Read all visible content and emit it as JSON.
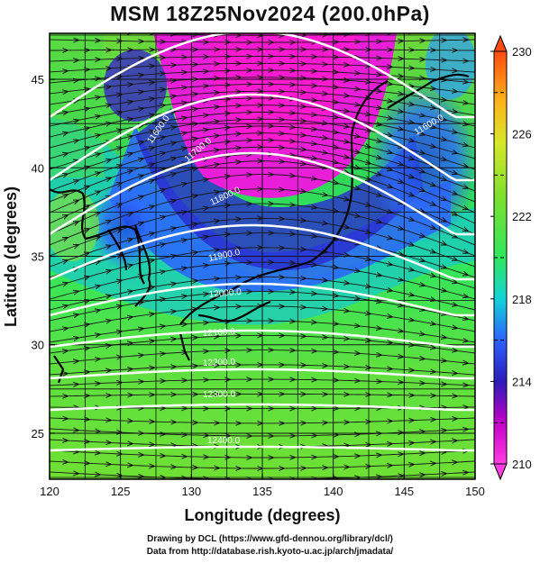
{
  "title": "MSM 18Z25Nov2024 (200.0hPa)",
  "axes": {
    "xlabel": "Longitude (degrees)",
    "ylabel": "Latitude  (degrees)",
    "xticks": [
      "120",
      "125",
      "130",
      "135",
      "140",
      "145",
      "150"
    ],
    "yticks": [
      "25",
      "30",
      "35",
      "40",
      "45"
    ],
    "xlim": [
      120,
      150
    ],
    "ylim": [
      22.4,
      47.6
    ]
  },
  "colorbar": {
    "ticks": [
      "210",
      "214",
      "218",
      "222",
      "226",
      "230"
    ],
    "range": [
      210,
      230
    ],
    "colors": [
      "#ff3fe0",
      "#c400c8",
      "#2b1bb8",
      "#2d62ff",
      "#12d3d8",
      "#2fe65e",
      "#7ee02c",
      "#d8e72a",
      "#ffb21a",
      "#ff4a10"
    ]
  },
  "contours": [
    {
      "label": "11600.0"
    },
    {
      "label": "11700.0"
    },
    {
      "label": "11800.0"
    },
    {
      "label": "11900.0"
    },
    {
      "label": "12000.0"
    },
    {
      "label": "12100.0"
    },
    {
      "label": "12200.0"
    },
    {
      "label": "12300.0"
    },
    {
      "label": "12400.0"
    }
  ],
  "credits": {
    "line1": "Drawing by DCL (https://www.gfd-dennou.org/library/dcl/)",
    "line2": "Data from http://database.rish.kyoto-u.ac.jp/arch/jmadata/"
  }
}
